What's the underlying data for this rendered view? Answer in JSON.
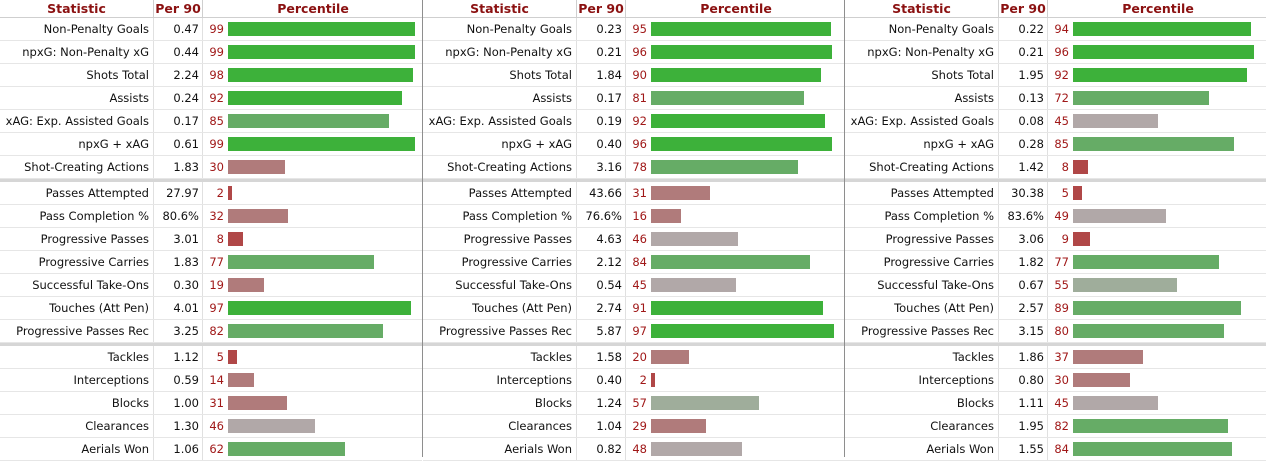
{
  "headers": {
    "statistic": "Statistic",
    "per90": "Per 90",
    "percentile": "Percentile"
  },
  "colors": {
    "header_text": "#8b1111",
    "elite": "#3db13a",
    "good": "#66ac66",
    "neutral_green": "#9fad9b",
    "neutral_gray": "#b1a8a8",
    "below": "#b07b7b",
    "poor": "#b04747"
  },
  "tables": [
    {
      "rows": [
        {
          "stat": "Non-Penalty Goals",
          "per90": "0.47",
          "pct": "99"
        },
        {
          "stat": "npxG: Non-Penalty xG",
          "per90": "0.44",
          "pct": "99"
        },
        {
          "stat": "Shots Total",
          "per90": "2.24",
          "pct": "98"
        },
        {
          "stat": "Assists",
          "per90": "0.24",
          "pct": "92"
        },
        {
          "stat": "xAG: Exp. Assisted Goals",
          "per90": "0.17",
          "pct": "85"
        },
        {
          "stat": "npxG + xAG",
          "per90": "0.61",
          "pct": "99"
        },
        {
          "stat": "Shot-Creating Actions",
          "per90": "1.83",
          "pct": "30"
        },
        {
          "stat": "Passes Attempted",
          "per90": "27.97",
          "pct": "2"
        },
        {
          "stat": "Pass Completion %",
          "per90": "80.6%",
          "pct": "32"
        },
        {
          "stat": "Progressive Passes",
          "per90": "3.01",
          "pct": "8"
        },
        {
          "stat": "Progressive Carries",
          "per90": "1.83",
          "pct": "77"
        },
        {
          "stat": "Successful Take-Ons",
          "per90": "0.30",
          "pct": "19"
        },
        {
          "stat": "Touches (Att Pen)",
          "per90": "4.01",
          "pct": "97"
        },
        {
          "stat": "Progressive Passes Rec",
          "per90": "3.25",
          "pct": "82"
        },
        {
          "stat": "Tackles",
          "per90": "1.12",
          "pct": "5"
        },
        {
          "stat": "Interceptions",
          "per90": "0.59",
          "pct": "14"
        },
        {
          "stat": "Blocks",
          "per90": "1.00",
          "pct": "31"
        },
        {
          "stat": "Clearances",
          "per90": "1.30",
          "pct": "46"
        },
        {
          "stat": "Aerials Won",
          "per90": "1.06",
          "pct": "62"
        }
      ]
    },
    {
      "rows": [
        {
          "stat": "Non-Penalty Goals",
          "per90": "0.23",
          "pct": "95"
        },
        {
          "stat": "npxG: Non-Penalty xG",
          "per90": "0.21",
          "pct": "96"
        },
        {
          "stat": "Shots Total",
          "per90": "1.84",
          "pct": "90"
        },
        {
          "stat": "Assists",
          "per90": "0.17",
          "pct": "81"
        },
        {
          "stat": "xAG: Exp. Assisted Goals",
          "per90": "0.19",
          "pct": "92"
        },
        {
          "stat": "npxG + xAG",
          "per90": "0.40",
          "pct": "96"
        },
        {
          "stat": "Shot-Creating Actions",
          "per90": "3.16",
          "pct": "78"
        },
        {
          "stat": "Passes Attempted",
          "per90": "43.66",
          "pct": "31"
        },
        {
          "stat": "Pass Completion %",
          "per90": "76.6%",
          "pct": "16"
        },
        {
          "stat": "Progressive Passes",
          "per90": "4.63",
          "pct": "46"
        },
        {
          "stat": "Progressive Carries",
          "per90": "2.12",
          "pct": "84"
        },
        {
          "stat": "Successful Take-Ons",
          "per90": "0.54",
          "pct": "45"
        },
        {
          "stat": "Touches (Att Pen)",
          "per90": "2.74",
          "pct": "91"
        },
        {
          "stat": "Progressive Passes Rec",
          "per90": "5.87",
          "pct": "97"
        },
        {
          "stat": "Tackles",
          "per90": "1.58",
          "pct": "20"
        },
        {
          "stat": "Interceptions",
          "per90": "0.40",
          "pct": "2"
        },
        {
          "stat": "Blocks",
          "per90": "1.24",
          "pct": "57"
        },
        {
          "stat": "Clearances",
          "per90": "1.04",
          "pct": "29"
        },
        {
          "stat": "Aerials Won",
          "per90": "0.82",
          "pct": "48"
        }
      ]
    },
    {
      "rows": [
        {
          "stat": "Non-Penalty Goals",
          "per90": "0.22",
          "pct": "94"
        },
        {
          "stat": "npxG: Non-Penalty xG",
          "per90": "0.21",
          "pct": "96"
        },
        {
          "stat": "Shots Total",
          "per90": "1.95",
          "pct": "92"
        },
        {
          "stat": "Assists",
          "per90": "0.13",
          "pct": "72"
        },
        {
          "stat": "xAG: Exp. Assisted Goals",
          "per90": "0.08",
          "pct": "45"
        },
        {
          "stat": "npxG + xAG",
          "per90": "0.28",
          "pct": "85"
        },
        {
          "stat": "Shot-Creating Actions",
          "per90": "1.42",
          "pct": "8"
        },
        {
          "stat": "Passes Attempted",
          "per90": "30.38",
          "pct": "5"
        },
        {
          "stat": "Pass Completion %",
          "per90": "83.6%",
          "pct": "49"
        },
        {
          "stat": "Progressive Passes",
          "per90": "3.06",
          "pct": "9"
        },
        {
          "stat": "Progressive Carries",
          "per90": "1.82",
          "pct": "77"
        },
        {
          "stat": "Successful Take-Ons",
          "per90": "0.67",
          "pct": "55"
        },
        {
          "stat": "Touches (Att Pen)",
          "per90": "2.57",
          "pct": "89"
        },
        {
          "stat": "Progressive Passes Rec",
          "per90": "3.15",
          "pct": "80"
        },
        {
          "stat": "Tackles",
          "per90": "1.86",
          "pct": "37"
        },
        {
          "stat": "Interceptions",
          "per90": "0.80",
          "pct": "30"
        },
        {
          "stat": "Blocks",
          "per90": "1.11",
          "pct": "45"
        },
        {
          "stat": "Clearances",
          "per90": "1.95",
          "pct": "82"
        },
        {
          "stat": "Aerials Won",
          "per90": "1.55",
          "pct": "84"
        }
      ]
    }
  ]
}
